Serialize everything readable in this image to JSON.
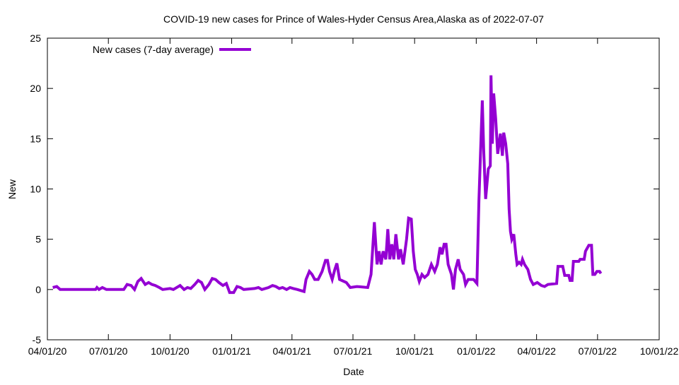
{
  "chart_data": {
    "type": "line",
    "title": "COVID-19 new cases for Prince of Wales-Hyder Census Area,Alaska as of 2022-07-07",
    "xlabel": "Date",
    "ylabel": "New",
    "xlim": [
      "2020-04-01",
      "2022-10-01"
    ],
    "ylim": [
      -5,
      25
    ],
    "x_ticks": [
      "04/01/20",
      "07/01/20",
      "10/01/20",
      "01/01/21",
      "04/01/21",
      "07/01/21",
      "10/01/21",
      "01/01/22",
      "04/01/22",
      "07/01/22",
      "10/01/22"
    ],
    "x_tick_dates": [
      "2020-04-01",
      "2020-07-01",
      "2020-10-01",
      "2021-01-01",
      "2021-04-01",
      "2021-07-01",
      "2021-10-01",
      "2022-01-01",
      "2022-04-01",
      "2022-07-01",
      "2022-10-01"
    ],
    "y_ticks": [
      "-5",
      "0",
      "5",
      "10",
      "15",
      "20",
      "25"
    ],
    "grid": false,
    "legend_position": "top-left",
    "series": [
      {
        "name": "New cases (7-day average)",
        "color": "#9400D3",
        "points": [
          [
            "2020-04-09",
            0.2
          ],
          [
            "2020-04-15",
            0.3
          ],
          [
            "2020-04-20",
            0
          ],
          [
            "2020-06-12",
            0
          ],
          [
            "2020-06-14",
            0.2
          ],
          [
            "2020-06-17",
            0
          ],
          [
            "2020-06-22",
            0.2
          ],
          [
            "2020-06-28",
            0
          ],
          [
            "2020-07-24",
            0
          ],
          [
            "2020-07-29",
            0.5
          ],
          [
            "2020-08-04",
            0.4
          ],
          [
            "2020-08-09",
            0
          ],
          [
            "2020-08-14",
            0.8
          ],
          [
            "2020-08-19",
            1.1
          ],
          [
            "2020-08-25",
            0.5
          ],
          [
            "2020-08-30",
            0.7
          ],
          [
            "2020-09-04",
            0.5
          ],
          [
            "2020-09-09",
            0.4
          ],
          [
            "2020-09-15",
            0.2
          ],
          [
            "2020-09-20",
            0
          ],
          [
            "2020-10-01",
            0.1
          ],
          [
            "2020-10-06",
            0
          ],
          [
            "2020-10-16",
            0.4
          ],
          [
            "2020-10-22",
            0
          ],
          [
            "2020-10-27",
            0.2
          ],
          [
            "2020-11-01",
            0.1
          ],
          [
            "2020-11-07",
            0.5
          ],
          [
            "2020-11-12",
            0.9
          ],
          [
            "2020-11-17",
            0.7
          ],
          [
            "2020-11-22",
            0
          ],
          [
            "2020-11-28",
            0.5
          ],
          [
            "2020-12-03",
            1.1
          ],
          [
            "2020-12-08",
            1.0
          ],
          [
            "2020-12-13",
            0.7
          ],
          [
            "2020-12-19",
            0.4
          ],
          [
            "2020-12-24",
            0.6
          ],
          [
            "2020-12-29",
            -0.3
          ],
          [
            "2021-01-04",
            -0.3
          ],
          [
            "2021-01-09",
            0.3
          ],
          [
            "2021-01-14",
            0.2
          ],
          [
            "2021-01-19",
            0
          ],
          [
            "2021-02-04",
            0.1
          ],
          [
            "2021-02-10",
            0.2
          ],
          [
            "2021-02-15",
            0
          ],
          [
            "2021-02-25",
            0.2
          ],
          [
            "2021-03-03",
            0.4
          ],
          [
            "2021-03-08",
            0.3
          ],
          [
            "2021-03-13",
            0.1
          ],
          [
            "2021-03-18",
            0.2
          ],
          [
            "2021-03-24",
            0
          ],
          [
            "2021-03-29",
            0.2
          ],
          [
            "2021-04-03",
            0.1
          ],
          [
            "2021-04-09",
            0
          ],
          [
            "2021-04-19",
            -0.2
          ],
          [
            "2021-04-22",
            1.0
          ],
          [
            "2021-04-27",
            1.8
          ],
          [
            "2021-05-01",
            1.5
          ],
          [
            "2021-05-05",
            1.0
          ],
          [
            "2021-05-10",
            1.0
          ],
          [
            "2021-05-16",
            1.8
          ],
          [
            "2021-05-21",
            2.9
          ],
          [
            "2021-05-24",
            2.9
          ],
          [
            "2021-05-27",
            1.8
          ],
          [
            "2021-05-31",
            1.0
          ],
          [
            "2021-06-04",
            2.0
          ],
          [
            "2021-06-07",
            2.6
          ],
          [
            "2021-06-11",
            1.0
          ],
          [
            "2021-06-21",
            0.7
          ],
          [
            "2021-06-27",
            0.2
          ],
          [
            "2021-07-07",
            0.3
          ],
          [
            "2021-07-23",
            0.2
          ],
          [
            "2021-07-28",
            1.5
          ],
          [
            "2021-08-02",
            6.7
          ],
          [
            "2021-08-06",
            2.5
          ],
          [
            "2021-08-09",
            3.8
          ],
          [
            "2021-08-12",
            2.5
          ],
          [
            "2021-08-15",
            3.8
          ],
          [
            "2021-08-19",
            3.0
          ],
          [
            "2021-08-22",
            6.0
          ],
          [
            "2021-08-25",
            3.0
          ],
          [
            "2021-08-28",
            4.5
          ],
          [
            "2021-08-31",
            3.0
          ],
          [
            "2021-09-03",
            5.5
          ],
          [
            "2021-09-07",
            3.0
          ],
          [
            "2021-09-10",
            4.0
          ],
          [
            "2021-09-14",
            2.5
          ],
          [
            "2021-09-19",
            5.0
          ],
          [
            "2021-09-22",
            7.1
          ],
          [
            "2021-09-26",
            7.0
          ],
          [
            "2021-09-29",
            3.8
          ],
          [
            "2021-10-02",
            2.0
          ],
          [
            "2021-10-05",
            1.5
          ],
          [
            "2021-10-08",
            0.8
          ],
          [
            "2021-10-12",
            1.5
          ],
          [
            "2021-10-16",
            1.2
          ],
          [
            "2021-10-21",
            1.5
          ],
          [
            "2021-10-26",
            2.5
          ],
          [
            "2021-10-31",
            1.8
          ],
          [
            "2021-11-04",
            2.5
          ],
          [
            "2021-11-08",
            4.2
          ],
          [
            "2021-11-11",
            3.5
          ],
          [
            "2021-11-14",
            4.5
          ],
          [
            "2021-11-17",
            4.5
          ],
          [
            "2021-11-20",
            2.5
          ],
          [
            "2021-11-25",
            1.5
          ],
          [
            "2021-11-28",
            0
          ],
          [
            "2021-12-01",
            2.0
          ],
          [
            "2021-12-05",
            3.0
          ],
          [
            "2021-12-08",
            2.0
          ],
          [
            "2021-12-13",
            1.5
          ],
          [
            "2021-12-16",
            0.5
          ],
          [
            "2021-12-20",
            1.0
          ],
          [
            "2021-12-28",
            1.0
          ],
          [
            "2022-01-02",
            0.6
          ],
          [
            "2022-01-05",
            8.8
          ],
          [
            "2022-01-10",
            18.8
          ],
          [
            "2022-01-12",
            14.0
          ],
          [
            "2022-01-15",
            9.0
          ],
          [
            "2022-01-19",
            12.0
          ],
          [
            "2022-01-22",
            12.3
          ],
          [
            "2022-01-23",
            21.3
          ],
          [
            "2022-01-25",
            14.5
          ],
          [
            "2022-01-27",
            19.5
          ],
          [
            "2022-01-30",
            17.0
          ],
          [
            "2022-02-02",
            13.5
          ],
          [
            "2022-02-06",
            15.5
          ],
          [
            "2022-02-09",
            13.3
          ],
          [
            "2022-02-11",
            15.6
          ],
          [
            "2022-02-14",
            14.5
          ],
          [
            "2022-02-17",
            12.5
          ],
          [
            "2022-02-19",
            8.0
          ],
          [
            "2022-02-21",
            5.8
          ],
          [
            "2022-02-23",
            5.0
          ],
          [
            "2022-02-26",
            5.5
          ],
          [
            "2022-03-01",
            3.5
          ],
          [
            "2022-03-03",
            2.5
          ],
          [
            "2022-03-06",
            2.7
          ],
          [
            "2022-03-09",
            2.5
          ],
          [
            "2022-03-11",
            3.0
          ],
          [
            "2022-03-14",
            2.5
          ],
          [
            "2022-03-19",
            2.0
          ],
          [
            "2022-03-23",
            1.0
          ],
          [
            "2022-03-27",
            0.5
          ],
          [
            "2022-04-02",
            0.7
          ],
          [
            "2022-04-08",
            0.4
          ],
          [
            "2022-04-13",
            0.3
          ],
          [
            "2022-04-18",
            0.5
          ],
          [
            "2022-05-01",
            0.6
          ],
          [
            "2022-05-03",
            2.3
          ],
          [
            "2022-05-10",
            2.3
          ],
          [
            "2022-05-13",
            1.4
          ],
          [
            "2022-05-19",
            1.4
          ],
          [
            "2022-05-21",
            0.9
          ],
          [
            "2022-05-24",
            0.9
          ],
          [
            "2022-05-26",
            2.8
          ],
          [
            "2022-06-03",
            2.8
          ],
          [
            "2022-06-05",
            3.0
          ],
          [
            "2022-06-11",
            3.0
          ],
          [
            "2022-06-13",
            3.8
          ],
          [
            "2022-06-18",
            4.4
          ],
          [
            "2022-06-22",
            4.4
          ],
          [
            "2022-06-24",
            1.5
          ],
          [
            "2022-06-27",
            1.5
          ],
          [
            "2022-06-30",
            1.8
          ],
          [
            "2022-07-04",
            1.8
          ],
          [
            "2022-07-06",
            1.6
          ]
        ]
      }
    ]
  }
}
